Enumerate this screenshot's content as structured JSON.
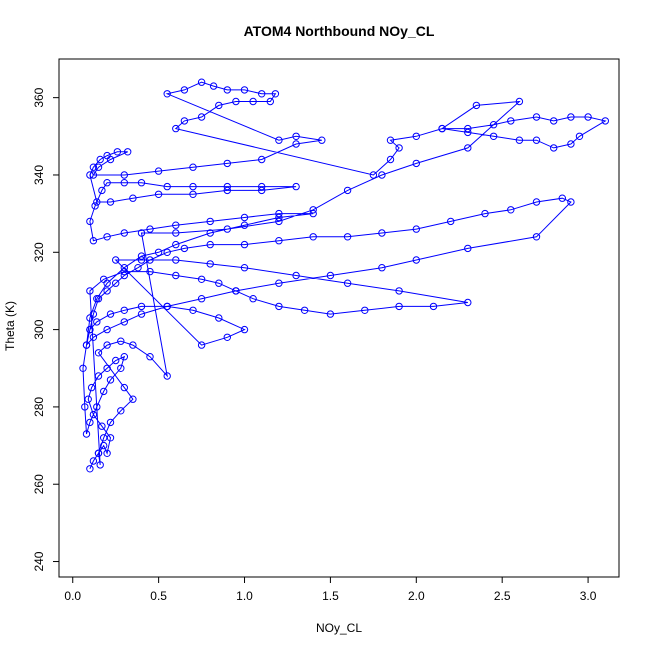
{
  "chart_data": {
    "type": "scatter",
    "title": "ATOM4 Northbound NOy_CL",
    "xlabel": "NOy_CL",
    "ylabel": "Theta (K)",
    "xlim": [
      -0.08,
      3.18
    ],
    "ylim": [
      236,
      370
    ],
    "xticks": [
      0.0,
      0.5,
      1.0,
      1.5,
      2.0,
      2.5,
      3.0
    ],
    "xtick_labels": [
      "0.0",
      "0.5",
      "1.0",
      "1.5",
      "2.0",
      "2.5",
      "3.0"
    ],
    "yticks": [
      240,
      260,
      280,
      300,
      320,
      340,
      360
    ],
    "ytick_labels": [
      "240",
      "260",
      "280",
      "300",
      "320",
      "340",
      "360"
    ],
    "grid": false,
    "legend": "none",
    "marker": "open-circle",
    "connected": true,
    "color": "#0000ff",
    "series": [
      {
        "points": [
          [
            0.1,
            264
          ],
          [
            0.12,
            266
          ],
          [
            0.15,
            268
          ],
          [
            0.18,
            270
          ],
          [
            0.2,
            268
          ],
          [
            0.22,
            272
          ],
          [
            0.17,
            275
          ],
          [
            0.12,
            278
          ],
          [
            0.09,
            282
          ],
          [
            0.11,
            285
          ],
          [
            0.15,
            288
          ],
          [
            0.2,
            290
          ],
          [
            0.25,
            292
          ],
          [
            0.3,
            293
          ],
          [
            0.28,
            290
          ],
          [
            0.22,
            287
          ],
          [
            0.18,
            284
          ],
          [
            0.14,
            280
          ],
          [
            0.1,
            276
          ],
          [
            0.08,
            273
          ],
          [
            0.07,
            280
          ],
          [
            0.06,
            290
          ],
          [
            0.08,
            296
          ],
          [
            0.1,
            300
          ],
          [
            0.12,
            304
          ],
          [
            0.15,
            308
          ],
          [
            0.2,
            310
          ],
          [
            0.25,
            312
          ],
          [
            0.3,
            314
          ],
          [
            0.38,
            316
          ],
          [
            0.45,
            318
          ],
          [
            0.55,
            320
          ],
          [
            0.65,
            321
          ],
          [
            0.8,
            322
          ],
          [
            1.0,
            322
          ],
          [
            1.2,
            323
          ],
          [
            1.4,
            324
          ],
          [
            1.6,
            324
          ],
          [
            1.8,
            325
          ],
          [
            2.0,
            326
          ],
          [
            2.2,
            328
          ],
          [
            2.4,
            330
          ],
          [
            2.55,
            331
          ],
          [
            2.7,
            333
          ],
          [
            2.85,
            334
          ],
          [
            2.9,
            333
          ],
          [
            2.7,
            324
          ],
          [
            2.3,
            321
          ],
          [
            2.0,
            318
          ],
          [
            1.8,
            316
          ],
          [
            1.5,
            314
          ],
          [
            1.2,
            312
          ],
          [
            0.95,
            310
          ],
          [
            0.75,
            308
          ],
          [
            0.55,
            306
          ],
          [
            0.4,
            304
          ],
          [
            0.3,
            302
          ],
          [
            0.2,
            300
          ],
          [
            0.12,
            298
          ],
          [
            0.08,
            296
          ],
          [
            0.1,
            303
          ],
          [
            0.14,
            308
          ],
          [
            0.2,
            312
          ],
          [
            0.3,
            316
          ],
          [
            0.4,
            319
          ],
          [
            0.5,
            320
          ],
          [
            0.6,
            322
          ],
          [
            0.8,
            325
          ],
          [
            1.0,
            327
          ],
          [
            1.2,
            329
          ],
          [
            1.4,
            330
          ],
          [
            1.2,
            330
          ],
          [
            1.0,
            329
          ],
          [
            0.8,
            328
          ],
          [
            0.6,
            327
          ],
          [
            0.45,
            326
          ],
          [
            0.3,
            325
          ],
          [
            0.2,
            324
          ],
          [
            0.12,
            323
          ],
          [
            0.1,
            328
          ],
          [
            0.13,
            332
          ],
          [
            0.17,
            336
          ],
          [
            0.2,
            338
          ],
          [
            0.3,
            338
          ],
          [
            0.4,
            338
          ],
          [
            0.55,
            337
          ],
          [
            0.7,
            337
          ],
          [
            0.9,
            337
          ],
          [
            1.1,
            337
          ],
          [
            1.3,
            337
          ],
          [
            1.1,
            336
          ],
          [
            0.9,
            336
          ],
          [
            0.7,
            335
          ],
          [
            0.5,
            335
          ],
          [
            0.35,
            334
          ],
          [
            0.22,
            333
          ],
          [
            0.14,
            333
          ],
          [
            0.1,
            340
          ],
          [
            0.12,
            342
          ],
          [
            0.16,
            344
          ],
          [
            0.2,
            345
          ],
          [
            0.26,
            346
          ],
          [
            0.32,
            346
          ],
          [
            0.22,
            344
          ],
          [
            0.15,
            342
          ],
          [
            0.12,
            340
          ],
          [
            0.3,
            340
          ],
          [
            0.5,
            341
          ],
          [
            0.7,
            342
          ],
          [
            0.9,
            343
          ],
          [
            1.1,
            344
          ],
          [
            1.3,
            348
          ],
          [
            1.45,
            349
          ],
          [
            1.3,
            350
          ],
          [
            1.2,
            349
          ],
          [
            0.55,
            361
          ],
          [
            0.65,
            362
          ],
          [
            0.75,
            364
          ],
          [
            0.82,
            363
          ],
          [
            0.9,
            362
          ],
          [
            1.0,
            362
          ],
          [
            1.1,
            361
          ],
          [
            1.18,
            361
          ],
          [
            1.15,
            359
          ],
          [
            1.05,
            359
          ],
          [
            0.95,
            359
          ],
          [
            0.85,
            358
          ],
          [
            0.75,
            355
          ],
          [
            0.65,
            354
          ],
          [
            0.6,
            352
          ],
          [
            1.75,
            340
          ],
          [
            1.85,
            344
          ],
          [
            1.9,
            347
          ],
          [
            1.85,
            349
          ],
          [
            2.0,
            350
          ],
          [
            2.15,
            352
          ],
          [
            2.3,
            352
          ],
          [
            2.45,
            353
          ],
          [
            2.55,
            354
          ],
          [
            2.7,
            355
          ],
          [
            2.8,
            354
          ],
          [
            2.9,
            355
          ],
          [
            3.0,
            355
          ],
          [
            3.1,
            354
          ],
          [
            2.95,
            350
          ],
          [
            2.9,
            348
          ],
          [
            2.8,
            347
          ],
          [
            2.7,
            349
          ],
          [
            2.6,
            349
          ],
          [
            2.45,
            350
          ],
          [
            2.3,
            351
          ],
          [
            2.15,
            352
          ],
          [
            2.35,
            358
          ],
          [
            2.6,
            359
          ],
          [
            2.3,
            347
          ],
          [
            2.0,
            343
          ],
          [
            1.8,
            340
          ],
          [
            1.6,
            336
          ],
          [
            1.4,
            331
          ],
          [
            1.2,
            328
          ],
          [
            0.9,
            326
          ],
          [
            0.6,
            325
          ],
          [
            0.4,
            325
          ],
          [
            0.55,
            288
          ],
          [
            0.45,
            293
          ],
          [
            0.35,
            296
          ],
          [
            0.28,
            297
          ],
          [
            0.2,
            296
          ],
          [
            0.15,
            294
          ],
          [
            0.3,
            285
          ],
          [
            0.35,
            282
          ],
          [
            0.28,
            279
          ],
          [
            0.22,
            276
          ],
          [
            0.18,
            272
          ],
          [
            0.15,
            268
          ],
          [
            0.16,
            265
          ],
          [
            0.1,
            310
          ],
          [
            0.18,
            313
          ],
          [
            0.3,
            315
          ],
          [
            0.45,
            315
          ],
          [
            0.6,
            314
          ],
          [
            0.75,
            313
          ],
          [
            0.85,
            312
          ],
          [
            0.95,
            310
          ],
          [
            1.05,
            308
          ],
          [
            1.2,
            306
          ],
          [
            1.35,
            305
          ],
          [
            1.5,
            304
          ],
          [
            1.7,
            305
          ],
          [
            1.9,
            306
          ],
          [
            2.1,
            306
          ],
          [
            2.3,
            307
          ],
          [
            1.9,
            310
          ],
          [
            1.6,
            312
          ],
          [
            1.3,
            314
          ],
          [
            1.0,
            316
          ],
          [
            0.8,
            317
          ],
          [
            0.6,
            318
          ],
          [
            0.4,
            318
          ],
          [
            0.25,
            318
          ],
          [
            0.75,
            296
          ],
          [
            0.9,
            298
          ],
          [
            1.0,
            300
          ],
          [
            0.85,
            303
          ],
          [
            0.7,
            305
          ],
          [
            0.55,
            306
          ],
          [
            0.4,
            306
          ],
          [
            0.3,
            305
          ],
          [
            0.22,
            304
          ],
          [
            0.14,
            302
          ],
          [
            0.1,
            300
          ]
        ]
      }
    ]
  }
}
